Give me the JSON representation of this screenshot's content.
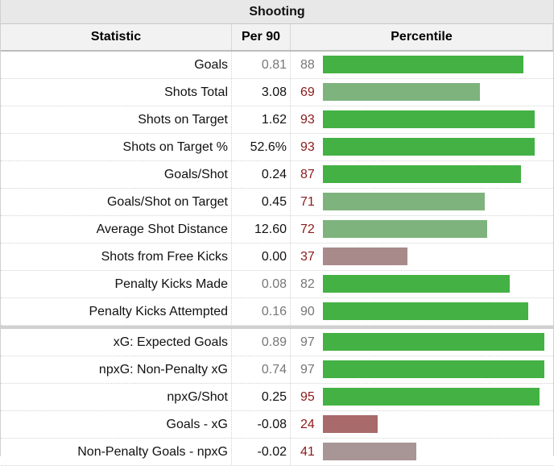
{
  "title": "Shooting",
  "headers": {
    "statistic": "Statistic",
    "per90": "Per 90",
    "percentile": "Percentile"
  },
  "colors": {
    "high": "#43b143",
    "mid": "#7eb37e",
    "low": "#a98a8a",
    "verylow": "#a86a6a",
    "lowmid": "#a89595"
  },
  "rows": [
    {
      "stat": "Goals",
      "per90": "0.81",
      "pct": 88,
      "per_style": "grey",
      "pct_style": "grey",
      "color": "high"
    },
    {
      "stat": "Shots Total",
      "per90": "3.08",
      "pct": 69,
      "per_style": "dark",
      "pct_style": "red",
      "color": "mid"
    },
    {
      "stat": "Shots on Target",
      "per90": "1.62",
      "pct": 93,
      "per_style": "dark",
      "pct_style": "red",
      "color": "high"
    },
    {
      "stat": "Shots on Target %",
      "per90": "52.6%",
      "pct": 93,
      "per_style": "dark",
      "pct_style": "red",
      "color": "high"
    },
    {
      "stat": "Goals/Shot",
      "per90": "0.24",
      "pct": 87,
      "per_style": "dark",
      "pct_style": "red",
      "color": "high"
    },
    {
      "stat": "Goals/Shot on Target",
      "per90": "0.45",
      "pct": 71,
      "per_style": "dark",
      "pct_style": "red",
      "color": "mid"
    },
    {
      "stat": "Average Shot Distance",
      "per90": "12.60",
      "pct": 72,
      "per_style": "dark",
      "pct_style": "red",
      "color": "mid"
    },
    {
      "stat": "Shots from Free Kicks",
      "per90": "0.00",
      "pct": 37,
      "per_style": "dark",
      "pct_style": "red",
      "color": "low"
    },
    {
      "stat": "Penalty Kicks Made",
      "per90": "0.08",
      "pct": 82,
      "per_style": "grey",
      "pct_style": "grey",
      "color": "high"
    },
    {
      "stat": "Penalty Kicks Attempted",
      "per90": "0.16",
      "pct": 90,
      "per_style": "grey",
      "pct_style": "grey",
      "color": "high"
    },
    {
      "stat": "xG: Expected Goals",
      "per90": "0.89",
      "pct": 97,
      "per_style": "grey",
      "pct_style": "grey",
      "color": "high",
      "sep": true
    },
    {
      "stat": "npxG: Non-Penalty xG",
      "per90": "0.74",
      "pct": 97,
      "per_style": "grey",
      "pct_style": "grey",
      "color": "high"
    },
    {
      "stat": "npxG/Shot",
      "per90": "0.25",
      "pct": 95,
      "per_style": "dark",
      "pct_style": "red",
      "color": "high"
    },
    {
      "stat": "Goals - xG",
      "per90": "-0.08",
      "pct": 24,
      "per_style": "dark",
      "pct_style": "red",
      "color": "verylow"
    },
    {
      "stat": "Non-Penalty Goals - npxG",
      "per90": "-0.02",
      "pct": 41,
      "per_style": "dark",
      "pct_style": "red",
      "color": "lowmid"
    }
  ]
}
